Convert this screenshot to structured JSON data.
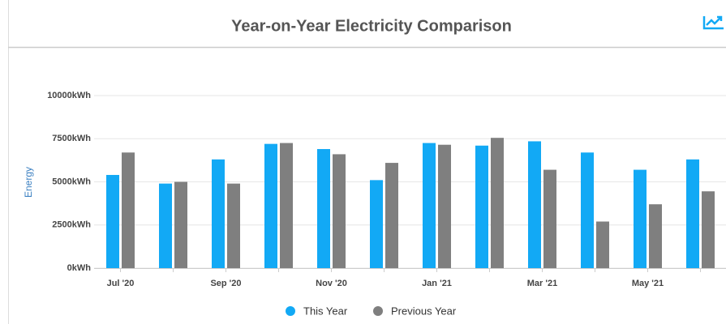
{
  "chart_data": {
    "type": "bar",
    "title": "Year-on-Year Electricity Comparison",
    "y_label": "Energy",
    "categories": [
      "Jul '20",
      null,
      "Sep '20",
      null,
      "Nov '20",
      null,
      "Jan '21",
      null,
      "Mar '21",
      null,
      "May '21",
      null
    ],
    "series": [
      {
        "name": "This Year",
        "color": "#12a9f5",
        "values": [
          5400,
          4900,
          6300,
          7200,
          6900,
          5100,
          7250,
          7100,
          7350,
          6700,
          5700,
          6300
        ]
      },
      {
        "name": "Previous Year",
        "color": "#7f7f7f",
        "values": [
          6700,
          5000,
          4900,
          7250,
          6600,
          6100,
          7150,
          7550,
          5700,
          2700,
          3700,
          4450
        ]
      }
    ],
    "ylim": [
      0,
      10000
    ],
    "yticks": [
      {
        "value": 0,
        "label": "0kWh"
      },
      {
        "value": 2500,
        "label": "2500kWh"
      },
      {
        "value": 5000,
        "label": "5000kWh"
      },
      {
        "value": 7500,
        "label": "7500kWh"
      },
      {
        "value": 10000,
        "label": "10000kWh"
      }
    ],
    "grid": true,
    "legend": "bottom"
  }
}
